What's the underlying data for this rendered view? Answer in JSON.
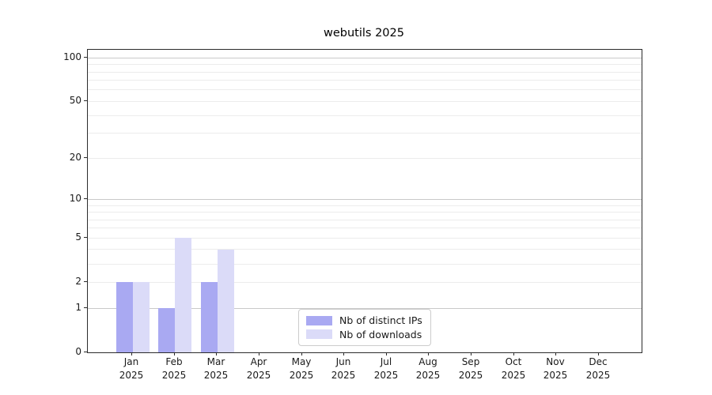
{
  "title": "webutils 2025",
  "chart_data": {
    "type": "bar",
    "title": "webutils 2025",
    "categories": [
      "Jan",
      "Feb",
      "Mar",
      "Apr",
      "May",
      "Jun",
      "Jul",
      "Aug",
      "Sep",
      "Oct",
      "Nov",
      "Dec"
    ],
    "category_year": "2025",
    "series": [
      {
        "name": "Nb of distinct IPs",
        "color": "#a9a9f2",
        "values": [
          2,
          1,
          2,
          0,
          0,
          0,
          0,
          0,
          0,
          0,
          0,
          0
        ]
      },
      {
        "name": "Nb of downloads",
        "color": "#dbdbf8",
        "values": [
          2,
          5,
          4,
          0,
          0,
          0,
          0,
          0,
          0,
          0,
          0,
          0
        ]
      }
    ],
    "xlabel": "",
    "ylabel": "",
    "yscale": "symlog (position proportional to log10(1+value))",
    "y_tick_values": [
      0,
      1,
      2,
      5,
      10,
      20,
      50,
      100
    ],
    "y_gridlines_major": [
      1,
      10,
      100
    ],
    "y_gridlines_minor": [
      2,
      3,
      4,
      5,
      6,
      7,
      8,
      9,
      20,
      30,
      40,
      50,
      60,
      70,
      80,
      90
    ],
    "ylim": [
      0,
      114
    ],
    "grid": "horizontal major+minor",
    "legend_position": "lower center",
    "legend_entries": [
      "Nb of distinct IPs",
      "Nb of downloads"
    ]
  },
  "colors": {
    "bar_distinct_ips": "#a9a9f2",
    "bar_downloads": "#dbdbf8",
    "grid_major": "#c9c9c9",
    "grid_minor": "#ececec",
    "spine": "#2b2b2b",
    "legend_border": "#cccccc",
    "background": "#ffffff",
    "text": "#1a1a1a"
  }
}
